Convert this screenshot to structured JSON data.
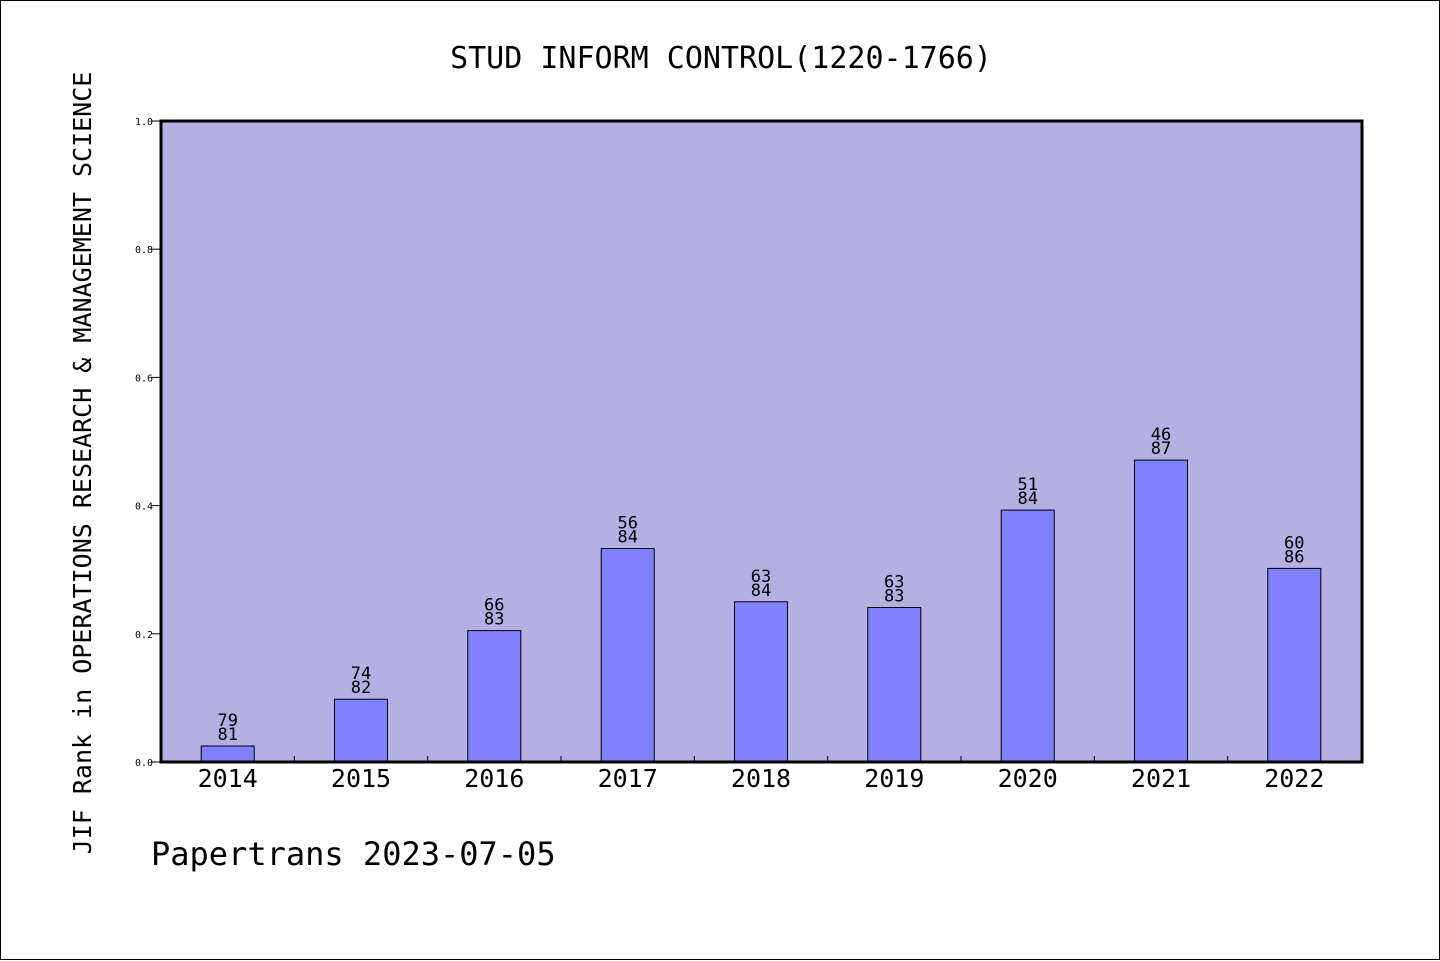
{
  "chart_data": {
    "type": "bar",
    "title": "STUD INFORM CONTROL(1220-1766)",
    "ylabel": "JIF Rank in OPERATIONS RESEARCH & MANAGEMENT SCIENCE",
    "xlabel": "",
    "categories": [
      "2014",
      "2015",
      "2016",
      "2017",
      "2018",
      "2019",
      "2020",
      "2021",
      "2022"
    ],
    "values": [
      0.025,
      0.098,
      0.205,
      0.333,
      0.25,
      0.241,
      0.393,
      0.471,
      0.302
    ],
    "rank_labels": [
      {
        "rank": "79",
        "total": "81"
      },
      {
        "rank": "74",
        "total": "82"
      },
      {
        "rank": "66",
        "total": "83"
      },
      {
        "rank": "56",
        "total": "84"
      },
      {
        "rank": "63",
        "total": "84"
      },
      {
        "rank": "63",
        "total": "83"
      },
      {
        "rank": "51",
        "total": "84"
      },
      {
        "rank": "46",
        "total": "87"
      },
      {
        "rank": "60",
        "total": "86"
      }
    ],
    "ylim": [
      0,
      1
    ],
    "yticks": [
      "0.0",
      "0.2",
      "0.4",
      "0.6",
      "0.8",
      "1.0"
    ],
    "grid": false,
    "colors": {
      "plot_background": "#b5b0e3",
      "bar_fill": "#8080ff",
      "axis": "#000000"
    }
  },
  "footer": {
    "credit": "Papertrans 2023-07-05"
  }
}
